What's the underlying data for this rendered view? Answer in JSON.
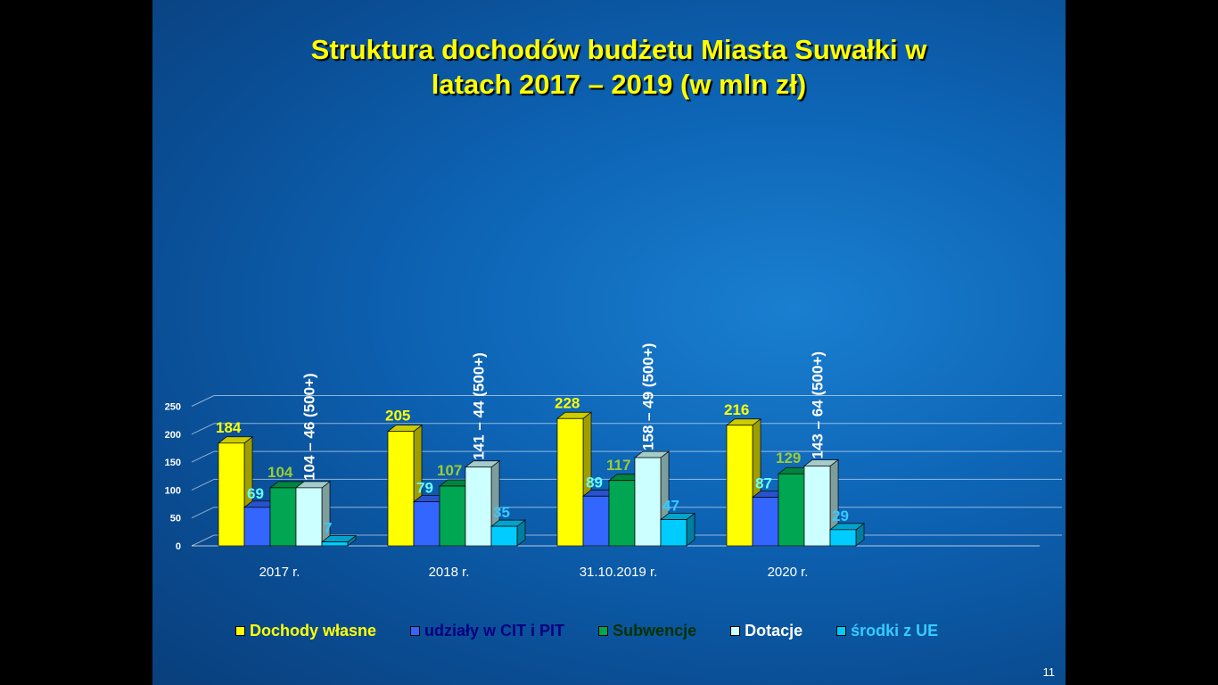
{
  "slide": {
    "title_line1": "Struktura dochodów budżetu Miasta Suwałki w",
    "title_line2": "latach 2017 – 2019 (w mln zł)",
    "page_number": "11"
  },
  "chart_data": {
    "type": "bar",
    "title": "Struktura dochodów budżetu Miasta Suwałki w latach 2017 – 2019 (w mln zł)",
    "categories": [
      "2017 r.",
      "2018 r.",
      "31.10.2019 r.",
      "2020 r."
    ],
    "ylim": [
      0,
      250
    ],
    "yticks": [
      "0",
      "50",
      "100",
      "150",
      "200",
      "250"
    ],
    "grid": true,
    "legend_position": "bottom",
    "series": [
      {
        "name": "Dochody własne",
        "color": "#ffff00",
        "label_color": "#ffff00",
        "values": [
          184,
          205,
          228,
          216
        ],
        "labels": [
          "184",
          "205",
          "228",
          "216"
        ]
      },
      {
        "name": "udziały w CIT i PIT",
        "color": "#3366ff",
        "label_color": "#66ffff",
        "legend_color": "#000080",
        "values": [
          69,
          79,
          89,
          87
        ],
        "labels": [
          "69",
          "79",
          "89",
          "87"
        ]
      },
      {
        "name": "Subwencje",
        "color": "#00a651",
        "label_color": "#99cc33",
        "legend_color": "#003300",
        "values": [
          104,
          107,
          117,
          129
        ],
        "labels": [
          "104",
          "107",
          "117",
          "129"
        ]
      },
      {
        "name": "Dotacje",
        "color": "#ccffff",
        "label_color": "#ffffff",
        "values": [
          104,
          141,
          158,
          143
        ],
        "labels": [
          "104 – 46 (500+)",
          "141 – 44 (500+)",
          "158 – 49 (500+)",
          "143 – 64 (500+)"
        ]
      },
      {
        "name": "środki z UE",
        "color": "#00ccff",
        "label_color": "#33ccff",
        "values": [
          7,
          35,
          47,
          29
        ],
        "labels": [
          "7",
          "35",
          "47",
          "29"
        ]
      }
    ]
  }
}
